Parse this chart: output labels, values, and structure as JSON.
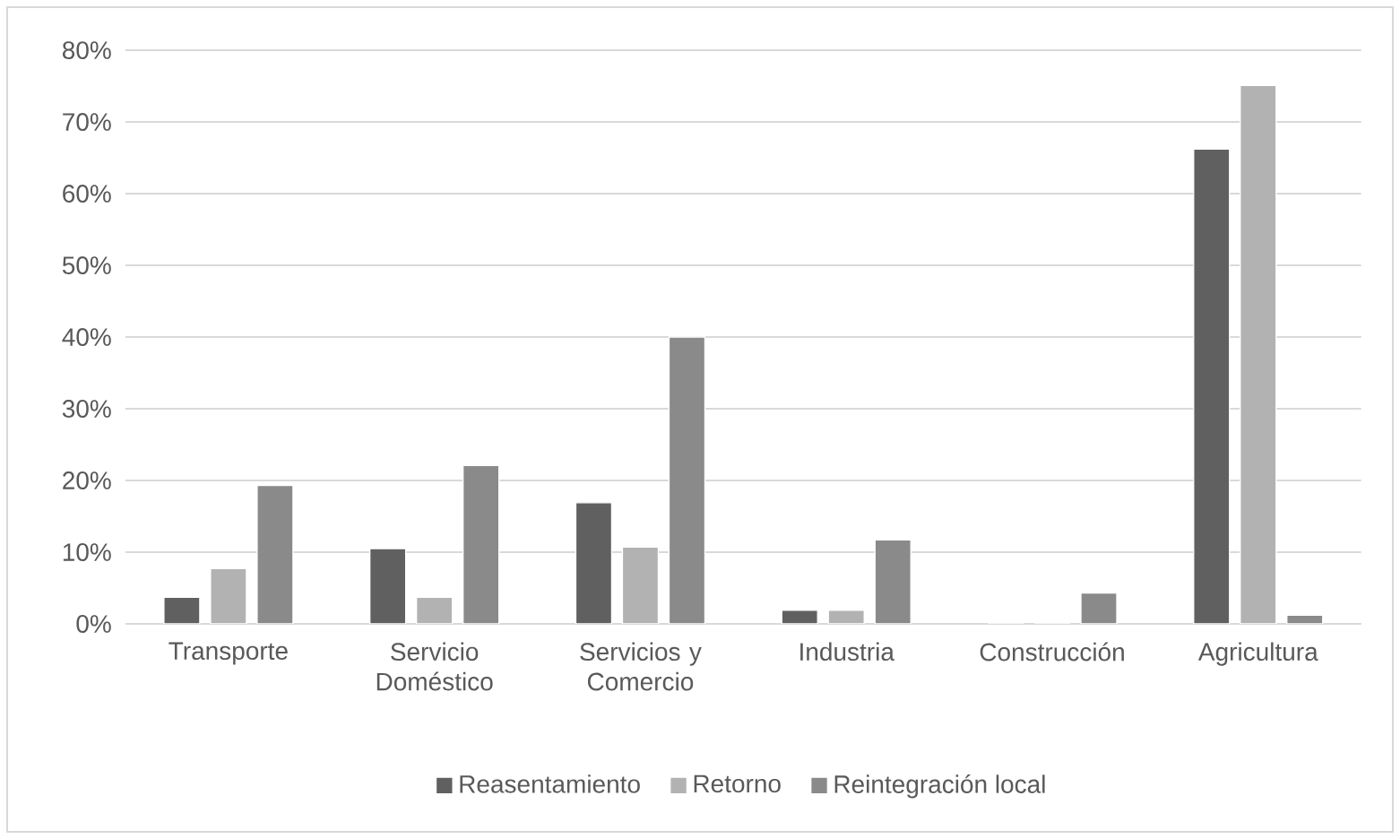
{
  "chart_data": {
    "type": "bar",
    "categories": [
      "Transporte",
      "Servicio Doméstico",
      "Servicios y Comercio",
      "Industria",
      "Construcción",
      "Agricultura"
    ],
    "series": [
      {
        "name": "Reasentamiento",
        "color": "#606060",
        "values": [
          3.7,
          10.5,
          16.9,
          1.9,
          0,
          66.2
        ]
      },
      {
        "name": "Retorno",
        "color": "#b2b2b2",
        "values": [
          7.7,
          3.7,
          10.7,
          1.9,
          0,
          75.1
        ]
      },
      {
        "name": "Reintegración local",
        "color": "#8a8a8a",
        "values": [
          19.3,
          22.1,
          40,
          11.7,
          4.3,
          1.2
        ]
      }
    ],
    "ylim": [
      0,
      80
    ],
    "yticks": [
      {
        "value": 0,
        "label": "0%"
      },
      {
        "value": 10,
        "label": "10%"
      },
      {
        "value": 20,
        "label": "20%"
      },
      {
        "value": 30,
        "label": "30%"
      },
      {
        "value": 40,
        "label": "40%"
      },
      {
        "value": 50,
        "label": "50%"
      },
      {
        "value": 60,
        "label": "60%"
      },
      {
        "value": 70,
        "label": "70%"
      },
      {
        "value": 80,
        "label": "80%"
      }
    ],
    "grid": "y",
    "legend": "bottom"
  }
}
